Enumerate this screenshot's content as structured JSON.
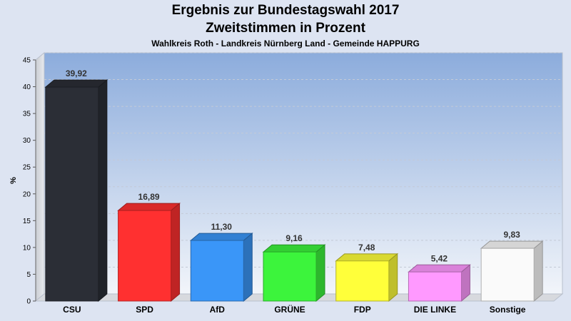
{
  "chart_data": {
    "type": "bar",
    "title": "Ergebnis zur Bundestagswahl 2017",
    "subtitle": "Zweitstimmen in Prozent",
    "subsubtitle": "Wahlkreis Roth - Landkreis Nürnberg Land - Gemeinde HAPPURG",
    "ylabel": "%",
    "xlabel": "",
    "ylim": [
      0,
      45
    ],
    "yticks": [
      0,
      5,
      10,
      15,
      20,
      25,
      30,
      35,
      40,
      45
    ],
    "categories": [
      "CSU",
      "SPD",
      "AfD",
      "GRÜNE",
      "FDP",
      "DIE LINKE",
      "Sonstige"
    ],
    "values": [
      39.92,
      16.89,
      11.3,
      9.16,
      7.48,
      5.42,
      9.83
    ],
    "value_labels": [
      "39,92",
      "16,89",
      "11,30",
      "9,16",
      "7,48",
      "5,42",
      "9,83"
    ],
    "colors": [
      "#2b2e36",
      "#ff3030",
      "#3a96f8",
      "#3cf43c",
      "#ffff3a",
      "#ff99ff",
      "#fafafa"
    ],
    "grid": true,
    "legend": "none"
  }
}
